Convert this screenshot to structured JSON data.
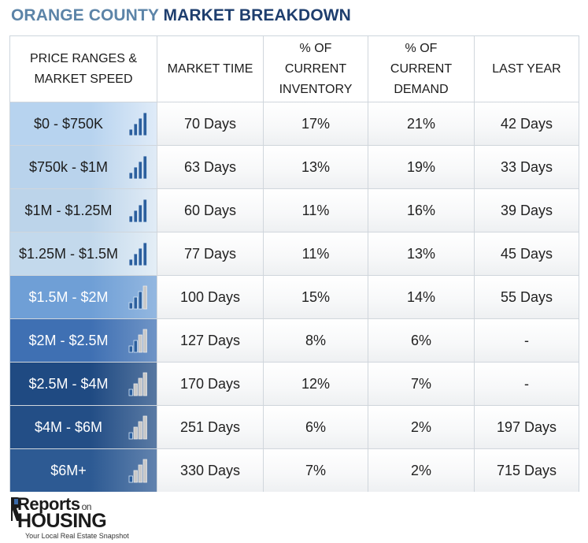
{
  "title": {
    "part1": "ORANGE COUNTY",
    "part2": "MARKET BREAKDOWN"
  },
  "headers": {
    "price": "PRICE RANGES & MARKET SPEED",
    "market_time": "MARKET TIME",
    "inventory": "% OF CURRENT INVENTORY",
    "demand": "% OF CURRENT DEMAND",
    "last_year": "LAST YEAR"
  },
  "chart_data": {
    "type": "table",
    "title": "ORANGE COUNTY MARKET BREAKDOWN",
    "columns": [
      "PRICE RANGES & MARKET SPEED",
      "MARKET TIME",
      "% OF CURRENT INVENTORY",
      "% OF CURRENT DEMAND",
      "LAST YEAR"
    ],
    "rows": [
      {
        "price": "$0 - $750K",
        "speed_level": 4,
        "market_time": "70 Days",
        "inventory": "17%",
        "demand": "21%",
        "last_year": "42 Days"
      },
      {
        "price": "$750k - $1M",
        "speed_level": 4,
        "market_time": "63 Days",
        "inventory": "13%",
        "demand": "19%",
        "last_year": "33 Days"
      },
      {
        "price": "$1M - $1.25M",
        "speed_level": 4,
        "market_time": "60 Days",
        "inventory": "11%",
        "demand": "16%",
        "last_year": "39 Days"
      },
      {
        "price": "$1.25M - $1.5M",
        "speed_level": 4,
        "market_time": "77 Days",
        "inventory": "11%",
        "demand": "13%",
        "last_year": "45 Days"
      },
      {
        "price": "$1.5M - $2M",
        "speed_level": 3,
        "market_time": "100 Days",
        "inventory": "15%",
        "demand": "14%",
        "last_year": "55 Days"
      },
      {
        "price": "$2M - $2.5M",
        "speed_level": 2,
        "market_time": "127 Days",
        "inventory": "8%",
        "demand": "6%",
        "last_year": "-"
      },
      {
        "price": "$2.5M - $4M",
        "speed_level": 1,
        "market_time": "170 Days",
        "inventory": "12%",
        "demand": "7%",
        "last_year": "-"
      },
      {
        "price": "$4M - $6M",
        "speed_level": 1,
        "market_time": "251 Days",
        "inventory": "6%",
        "demand": "2%",
        "last_year": "197 Days"
      },
      {
        "price": "$6M+",
        "speed_level": 1,
        "market_time": "330 Days",
        "inventory": "7%",
        "demand": "2%",
        "last_year": "715 Days"
      }
    ]
  },
  "colors": {
    "title_light": "#5c84a8",
    "title_dark": "#1e3e6e",
    "price_backgrounds": [
      "#b7d3ef",
      "#b9d3ec",
      "#bcd4ea",
      "#c3d9ec",
      "#6f9fd6",
      "#3f70b3",
      "#1f4a82",
      "#234e86",
      "#2d5a93"
    ],
    "bar_active": "#2b5f9e",
    "bar_inactive": "#c8c8c8"
  },
  "logo": {
    "line1": "Reports",
    "line1_small": "on",
    "line2": "HOUSING",
    "tagline": "Your Local Real Estate Snapshot"
  }
}
